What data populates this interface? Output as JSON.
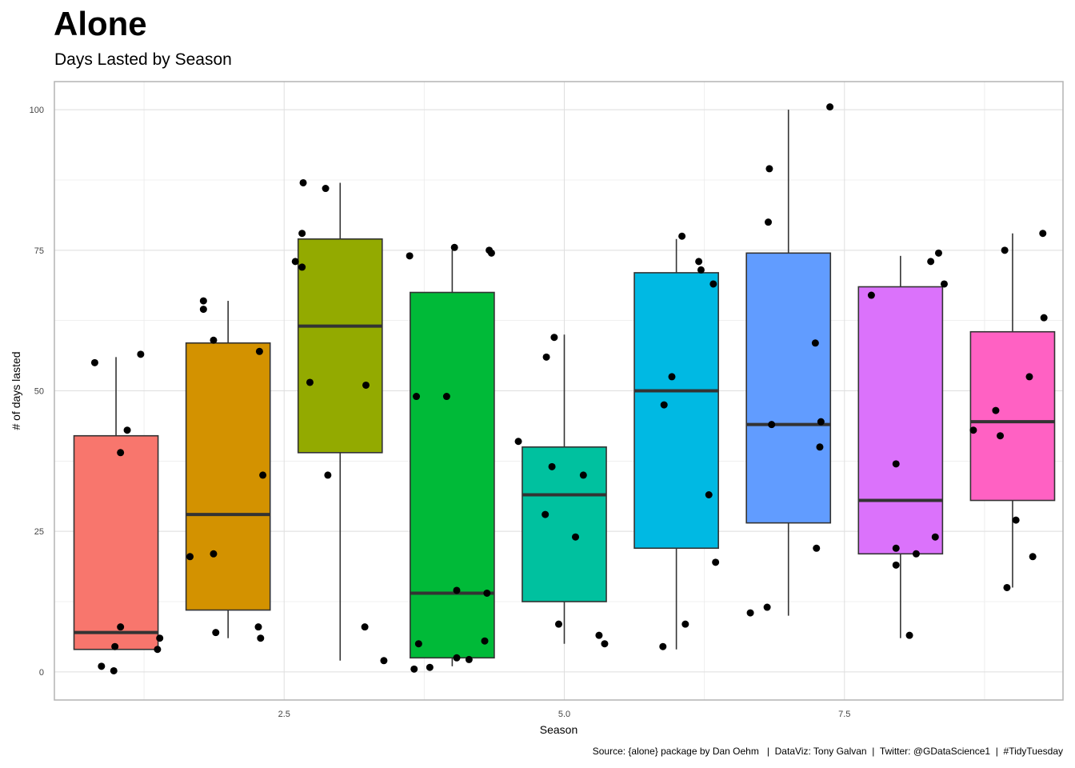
{
  "title": "Alone",
  "subtitle": "Days Lasted by Season",
  "caption": "Source: {alone} package by Dan Oehm   |  DataViz: Tony Galvan  |  Twitter: @GDataScience1  |  #TidyTuesday",
  "chart_data": {
    "type": "boxplot",
    "title": "Alone",
    "subtitle": "Days Lasted by Season",
    "xlabel": "Season",
    "ylabel": "# of days lasted",
    "xlim": [
      0.45,
      9.45
    ],
    "ylim": [
      -5,
      105
    ],
    "x_ticks": [
      2.5,
      5.0,
      7.5
    ],
    "x_tick_labels": [
      "2.5",
      "5.0",
      "7.5"
    ],
    "y_ticks": [
      0,
      25,
      50,
      75,
      100
    ],
    "y_tick_labels": [
      "0",
      "25",
      "50",
      "75",
      "100"
    ],
    "grid": true,
    "legend": "none",
    "box_width": 0.75,
    "series": [
      {
        "season": 1,
        "color": "#F8766D",
        "whisker_low": 4,
        "q1": 4,
        "median": 7,
        "q3": 42,
        "whisker_high": 56,
        "points": [
          [
            0.81,
            55
          ],
          [
            1.04,
            39
          ],
          [
            1.22,
            56.5
          ],
          [
            1.1,
            43
          ],
          [
            1.04,
            8
          ],
          [
            0.87,
            1
          ],
          [
            0.98,
            0.2
          ],
          [
            0.99,
            4.5
          ],
          [
            1.37,
            4
          ],
          [
            1.39,
            6
          ]
        ]
      },
      {
        "season": 2,
        "color": "#D39200",
        "whisker_low": 6,
        "q1": 11,
        "median": 28,
        "q3": 58.5,
        "whisker_high": 66,
        "points": [
          [
            1.78,
            66
          ],
          [
            1.78,
            64.5
          ],
          [
            1.87,
            59
          ],
          [
            2.28,
            57
          ],
          [
            2.31,
            35
          ],
          [
            1.66,
            20.5
          ],
          [
            1.87,
            21
          ],
          [
            1.89,
            7
          ],
          [
            2.27,
            8
          ],
          [
            2.29,
            6
          ]
        ]
      },
      {
        "season": 3,
        "color": "#93AA00",
        "whisker_low": 2,
        "q1": 39,
        "median": 61.5,
        "q3": 77,
        "whisker_high": 87,
        "points": [
          [
            2.67,
            87
          ],
          [
            2.87,
            86
          ],
          [
            2.66,
            78
          ],
          [
            2.6,
            73
          ],
          [
            2.66,
            72
          ],
          [
            2.73,
            51.5
          ],
          [
            3.23,
            51
          ],
          [
            2.89,
            35
          ],
          [
            3.22,
            8
          ],
          [
            3.39,
            2
          ]
        ]
      },
      {
        "season": 4,
        "color": "#00BA38",
        "whisker_low": 1,
        "q1": 2.5,
        "median": 14,
        "q3": 67.5,
        "whisker_high": 75,
        "points": [
          [
            3.62,
            74
          ],
          [
            4.02,
            75.5
          ],
          [
            4.33,
            75
          ],
          [
            4.35,
            74.5
          ],
          [
            3.68,
            49
          ],
          [
            3.95,
            49
          ],
          [
            4.04,
            14.5
          ],
          [
            4.31,
            14
          ],
          [
            3.7,
            5
          ],
          [
            4.29,
            5.5
          ],
          [
            4.04,
            2.5
          ],
          [
            4.15,
            2.2
          ],
          [
            3.66,
            0.5
          ],
          [
            3.8,
            0.8
          ]
        ]
      },
      {
        "season": 5,
        "color": "#00C19F",
        "whisker_low": 5,
        "q1": 12.5,
        "median": 31.5,
        "q3": 40,
        "whisker_high": 60,
        "points": [
          [
            4.59,
            41
          ],
          [
            4.84,
            56
          ],
          [
            4.91,
            59.5
          ],
          [
            4.89,
            36.5
          ],
          [
            5.17,
            35
          ],
          [
            4.83,
            28
          ],
          [
            5.1,
            24
          ],
          [
            4.95,
            8.5
          ],
          [
            5.31,
            6.5
          ],
          [
            5.36,
            5
          ]
        ]
      },
      {
        "season": 6,
        "color": "#00B9E3",
        "whisker_low": 4,
        "q1": 22,
        "median": 50,
        "q3": 71,
        "whisker_high": 77,
        "points": [
          [
            6.05,
            77.5
          ],
          [
            6.2,
            73
          ],
          [
            6.22,
            71.5
          ],
          [
            6.33,
            69
          ],
          [
            5.96,
            52.5
          ],
          [
            5.89,
            47.5
          ],
          [
            6.29,
            31.5
          ],
          [
            6.35,
            19.5
          ],
          [
            6.08,
            8.5
          ],
          [
            5.88,
            4.5
          ]
        ]
      },
      {
        "season": 7,
        "color": "#619CFF",
        "whisker_low": 10,
        "q1": 26.5,
        "median": 44,
        "q3": 74.5,
        "whisker_high": 100,
        "points": [
          [
            7.37,
            100.5
          ],
          [
            6.83,
            89.5
          ],
          [
            6.82,
            80
          ],
          [
            7.24,
            58.5
          ],
          [
            7.29,
            44.5
          ],
          [
            6.85,
            44
          ],
          [
            7.28,
            40
          ],
          [
            7.25,
            22
          ],
          [
            6.66,
            10.5
          ],
          [
            6.81,
            11.5
          ]
        ]
      },
      {
        "season": 8,
        "color": "#DB72FB",
        "whisker_low": 6,
        "q1": 21,
        "median": 30.5,
        "q3": 68.5,
        "whisker_high": 74,
        "points": [
          [
            8.34,
            74.5
          ],
          [
            8.27,
            73
          ],
          [
            8.39,
            69
          ],
          [
            7.74,
            67
          ],
          [
            7.96,
            37
          ],
          [
            7.96,
            22
          ],
          [
            8.14,
            21
          ],
          [
            7.96,
            19
          ],
          [
            8.31,
            24
          ],
          [
            8.08,
            6.5
          ]
        ]
      },
      {
        "season": 9,
        "color": "#FF61C3",
        "whisker_low": 15,
        "q1": 30.5,
        "median": 44.5,
        "q3": 60.5,
        "whisker_high": 78,
        "points": [
          [
            9.27,
            78
          ],
          [
            8.93,
            75
          ],
          [
            9.28,
            63
          ],
          [
            9.15,
            52.5
          ],
          [
            8.85,
            46.5
          ],
          [
            8.65,
            43
          ],
          [
            8.89,
            42
          ],
          [
            9.03,
            27
          ],
          [
            9.18,
            20.5
          ],
          [
            8.95,
            15
          ]
        ]
      }
    ]
  }
}
